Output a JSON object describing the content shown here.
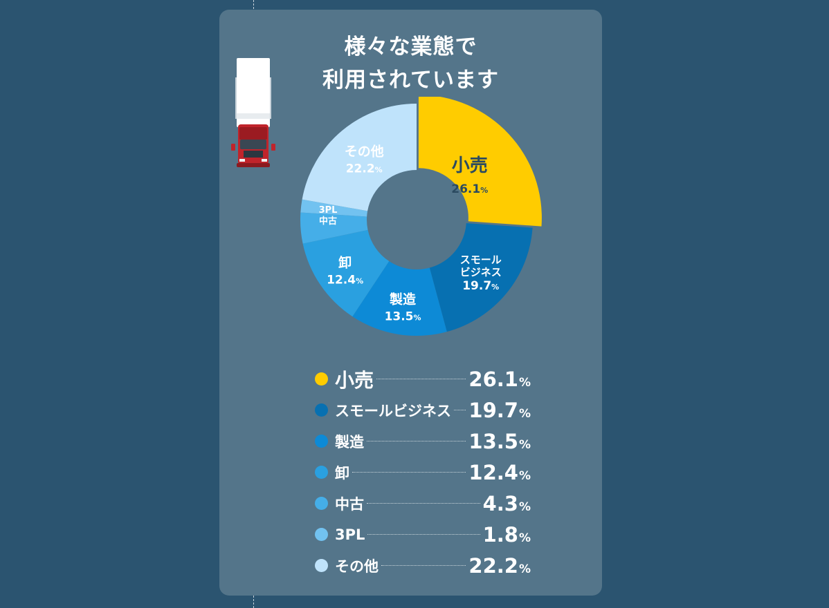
{
  "title": {
    "line1": "様々な業態で",
    "line2": "利用されています"
  },
  "chart_data": {
    "type": "pie",
    "title": "様々な業態で利用されています",
    "unit": "%",
    "segments": [
      {
        "name": "小売",
        "value": 26.1,
        "color": "#ffcc00",
        "label_lines": [
          "小売"
        ],
        "label_value": "26.1",
        "text_color": "#2b4a60"
      },
      {
        "name": "スモールビジネス",
        "value": 19.7,
        "color": "#0770b1",
        "label_lines": [
          "スモール",
          "ビジネス"
        ],
        "label_value": "19.7",
        "text_color": "#ffffff"
      },
      {
        "name": "製造",
        "value": 13.5,
        "color": "#0d8ad6",
        "label_lines": [
          "製造"
        ],
        "label_value": "13.5",
        "text_color": "#ffffff"
      },
      {
        "name": "卸",
        "value": 12.4,
        "color": "#2aa0e0",
        "label_lines": [
          "卸"
        ],
        "label_value": "12.4",
        "text_color": "#ffffff"
      },
      {
        "name": "中古",
        "value": 4.3,
        "color": "#45aee8",
        "label_lines": [
          "中古"
        ],
        "label_value": "",
        "text_color": "#ffffff"
      },
      {
        "name": "3PL",
        "value": 1.8,
        "color": "#72c2f0",
        "label_lines": [
          "3PL"
        ],
        "label_value": "",
        "text_color": "#ffffff"
      },
      {
        "name": "その他",
        "value": 22.2,
        "color": "#bfe3fb",
        "label_lines": [
          "その他"
        ],
        "label_value": "22.2",
        "text_color": "#ffffff"
      }
    ]
  },
  "legend": [
    {
      "name": "小売",
      "value": "26.1",
      "unit": "%",
      "color": "#ffcc00"
    },
    {
      "name": "スモールビジネス",
      "value": "19.7",
      "unit": "%",
      "color": "#0770b1"
    },
    {
      "name": "製造",
      "value": "13.5",
      "unit": "%",
      "color": "#0d8ad6"
    },
    {
      "name": "卸",
      "value": "12.4",
      "unit": "%",
      "color": "#2aa0e0"
    },
    {
      "name": "中古",
      "value": "4.3",
      "unit": "%",
      "color": "#45aee8"
    },
    {
      "name": "3PL",
      "value": "1.8",
      "unit": "%",
      "color": "#72c2f0"
    },
    {
      "name": "その他",
      "value": "22.2",
      "unit": "%",
      "color": "#bfe3fb"
    }
  ]
}
